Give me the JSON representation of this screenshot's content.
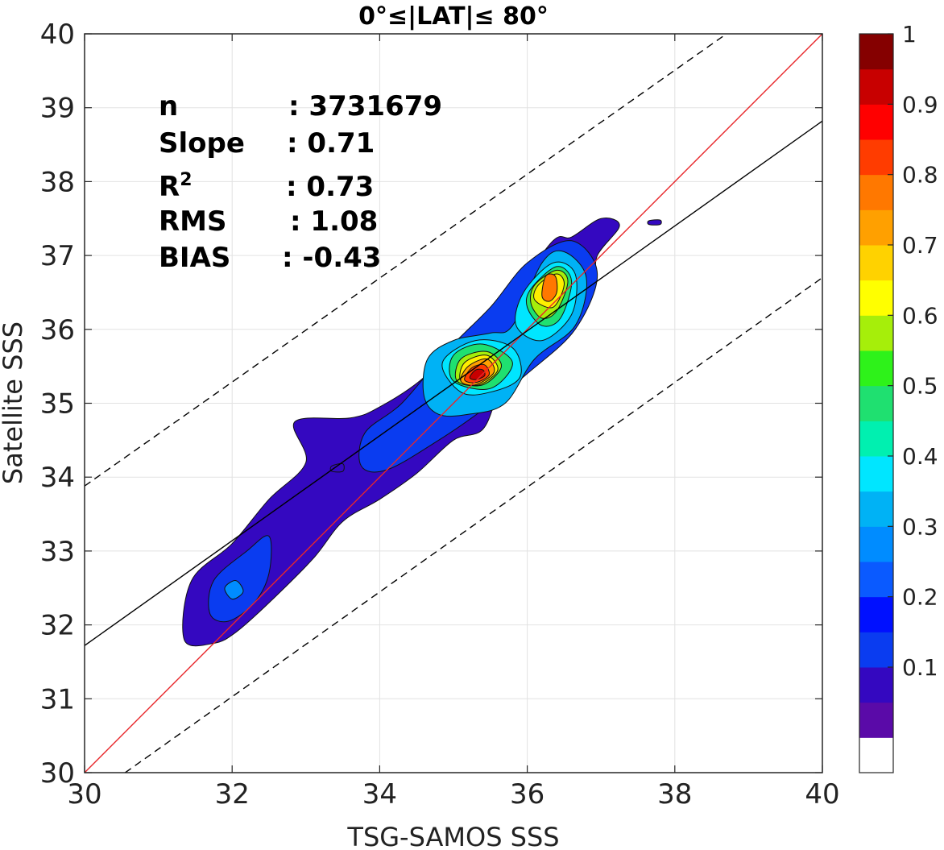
{
  "chart_data": {
    "type": "heatmap",
    "title": "0°≤|LAT|≤ 80°",
    "xlabel": "TSG-SAMOS SSS",
    "ylabel": "Satellite SSS",
    "xlim": [
      30,
      40
    ],
    "ylim": [
      30,
      40
    ],
    "x_ticks": [
      "30",
      "32",
      "34",
      "36",
      "38",
      "40"
    ],
    "y_ticks": [
      "30",
      "31",
      "32",
      "33",
      "34",
      "35",
      "36",
      "37",
      "38",
      "39",
      "40"
    ],
    "grid": true,
    "stats": [
      {
        "key": "n",
        "value": ": 3731679"
      },
      {
        "key": "Slope",
        "value": ": 0.71"
      },
      {
        "key": "R2",
        "value": ": 0.73"
      },
      {
        "key": "RMS",
        "value": ": 1.08"
      },
      {
        "key": "BIAS",
        "value": ": -0.43"
      }
    ],
    "lines": [
      {
        "name": "one-to-one",
        "color": "#e8262a",
        "style": "solid",
        "x": [
          30,
          40
        ],
        "y": [
          30,
          40
        ]
      },
      {
        "name": "regression",
        "color": "#000000",
        "style": "solid",
        "x": [
          30,
          40
        ],
        "y": [
          31.72,
          38.82
        ]
      },
      {
        "name": "upper-bound",
        "color": "#000000",
        "style": "dashed",
        "x": [
          30,
          38.7
        ],
        "y": [
          33.88,
          40
        ]
      },
      {
        "name": "lower-bound",
        "color": "#000000",
        "style": "dashed",
        "x": [
          30.55,
          40
        ],
        "y": [
          30,
          36.7
        ]
      }
    ],
    "contours": [
      {
        "level": 0.05,
        "color": "#3408c0",
        "points": [
          [
            31.35,
            31.8
          ],
          [
            31.45,
            32.6
          ],
          [
            32.0,
            33.1
          ],
          [
            32.5,
            33.7
          ],
          [
            33.0,
            34.2
          ],
          [
            32.85,
            34.75
          ],
          [
            33.6,
            34.8
          ],
          [
            34.0,
            34.95
          ],
          [
            34.6,
            35.35
          ],
          [
            35.2,
            36.0
          ],
          [
            35.8,
            36.5
          ],
          [
            36.35,
            37.2
          ],
          [
            36.6,
            37.25
          ],
          [
            37.0,
            37.5
          ],
          [
            37.25,
            37.4
          ],
          [
            36.95,
            37.0
          ],
          [
            36.9,
            36.6
          ],
          [
            36.55,
            36.0
          ],
          [
            36.1,
            35.7
          ],
          [
            35.65,
            35.2
          ],
          [
            35.4,
            34.65
          ],
          [
            35.0,
            34.5
          ],
          [
            34.5,
            34.05
          ],
          [
            34.0,
            33.7
          ],
          [
            33.5,
            33.4
          ],
          [
            33.1,
            32.9
          ],
          [
            32.5,
            32.3
          ],
          [
            32.05,
            31.9
          ],
          [
            31.75,
            31.75
          ]
        ]
      },
      {
        "level": 0.05,
        "color": "#3408c0",
        "points": [
          [
            37.65,
            37.47
          ],
          [
            37.8,
            37.48
          ],
          [
            37.8,
            37.42
          ],
          [
            37.65,
            37.42
          ]
        ]
      },
      {
        "level": 0.05,
        "color": "#3408c0",
        "points": [
          [
            33.35,
            34.15
          ],
          [
            33.5,
            34.18
          ],
          [
            33.5,
            34.08
          ],
          [
            33.35,
            34.08
          ]
        ]
      },
      {
        "level": 0.15,
        "color": "#0a3cf0",
        "points": [
          [
            31.7,
            32.15
          ],
          [
            31.75,
            32.6
          ],
          [
            32.2,
            33.0
          ],
          [
            32.5,
            33.2
          ],
          [
            32.5,
            32.7
          ],
          [
            32.3,
            32.3
          ],
          [
            31.95,
            32.05
          ]
        ]
      },
      {
        "level": 0.15,
        "color": "#0a3cf0",
        "points": [
          [
            33.75,
            34.15
          ],
          [
            33.8,
            34.6
          ],
          [
            34.3,
            35.0
          ],
          [
            34.9,
            35.7
          ],
          [
            35.5,
            36.3
          ],
          [
            36.0,
            36.9
          ],
          [
            36.6,
            37.2
          ],
          [
            36.95,
            36.75
          ],
          [
            36.65,
            36.0
          ],
          [
            36.0,
            35.4
          ],
          [
            35.45,
            34.95
          ],
          [
            34.8,
            34.5
          ],
          [
            34.1,
            34.1
          ]
        ]
      },
      {
        "level": 0.25,
        "color": "#008cff",
        "points": [
          [
            31.9,
            32.5
          ],
          [
            32.05,
            32.6
          ],
          [
            32.15,
            32.45
          ],
          [
            32.0,
            32.35
          ]
        ]
      },
      {
        "level": 0.25,
        "color": "#00b2f5",
        "points": [
          [
            34.6,
            35.1
          ],
          [
            34.65,
            35.6
          ],
          [
            35.0,
            35.85
          ],
          [
            35.5,
            35.95
          ],
          [
            35.8,
            36.05
          ],
          [
            36.2,
            36.9
          ],
          [
            36.5,
            37.05
          ],
          [
            36.8,
            36.7
          ],
          [
            36.65,
            36.05
          ],
          [
            36.1,
            35.6
          ],
          [
            35.7,
            35.0
          ],
          [
            35.2,
            34.85
          ],
          [
            34.8,
            34.85
          ]
        ]
      },
      {
        "level": 0.35,
        "color": "#00e6ff",
        "points": [
          [
            35.1,
            35.15
          ],
          [
            34.85,
            35.55
          ],
          [
            35.3,
            35.85
          ],
          [
            35.8,
            35.75
          ],
          [
            35.9,
            35.35
          ],
          [
            35.5,
            35.15
          ]
        ]
      },
      {
        "level": 0.35,
        "color": "#00e6ff",
        "points": [
          [
            35.85,
            36.05
          ],
          [
            35.95,
            36.5
          ],
          [
            36.35,
            36.9
          ],
          [
            36.65,
            36.75
          ],
          [
            36.6,
            36.2
          ],
          [
            36.2,
            35.85
          ]
        ]
      },
      {
        "level": 0.45,
        "color": "#1fe070",
        "points": [
          [
            35.0,
            35.3
          ],
          [
            35.0,
            35.65
          ],
          [
            35.4,
            35.8
          ],
          [
            35.8,
            35.55
          ],
          [
            35.5,
            35.2
          ]
        ]
      },
      {
        "level": 0.45,
        "color": "#1fe070",
        "points": [
          [
            36.0,
            36.3
          ],
          [
            36.05,
            36.55
          ],
          [
            36.4,
            36.85
          ],
          [
            36.6,
            36.65
          ],
          [
            36.45,
            36.15
          ],
          [
            36.2,
            36.05
          ]
        ]
      },
      {
        "level": 0.55,
        "color": "#a6ee0a",
        "points": [
          [
            35.05,
            35.3
          ],
          [
            35.1,
            35.6
          ],
          [
            35.45,
            35.7
          ],
          [
            35.65,
            35.5
          ],
          [
            35.4,
            35.25
          ]
        ]
      },
      {
        "level": 0.55,
        "color": "#a6ee0a",
        "points": [
          [
            36.05,
            36.35
          ],
          [
            36.1,
            36.6
          ],
          [
            36.4,
            36.8
          ],
          [
            36.55,
            36.65
          ],
          [
            36.4,
            36.25
          ],
          [
            36.2,
            36.15
          ]
        ]
      },
      {
        "level": 0.65,
        "color": "#ffee00",
        "points": [
          [
            35.1,
            35.3
          ],
          [
            35.15,
            35.55
          ],
          [
            35.45,
            35.65
          ],
          [
            35.6,
            35.45
          ],
          [
            35.35,
            35.25
          ]
        ]
      },
      {
        "level": 0.65,
        "color": "#ffee00",
        "points": [
          [
            36.1,
            36.4
          ],
          [
            36.15,
            36.6
          ],
          [
            36.4,
            36.75
          ],
          [
            36.5,
            36.6
          ],
          [
            36.35,
            36.3
          ]
        ]
      },
      {
        "level": 0.75,
        "color": "#ffa000",
        "points": [
          [
            35.1,
            35.3
          ],
          [
            35.2,
            35.5
          ],
          [
            35.45,
            35.6
          ],
          [
            35.55,
            35.42
          ],
          [
            35.3,
            35.25
          ]
        ]
      },
      {
        "level": 0.75,
        "color": "#ff7800",
        "points": [
          [
            36.2,
            36.45
          ],
          [
            36.25,
            36.72
          ],
          [
            36.38,
            36.72
          ],
          [
            36.4,
            36.5
          ],
          [
            36.3,
            36.38
          ]
        ]
      },
      {
        "level": 0.85,
        "color": "#ff3c00",
        "points": [
          [
            35.15,
            35.32
          ],
          [
            35.25,
            35.48
          ],
          [
            35.42,
            35.52
          ],
          [
            35.48,
            35.38
          ],
          [
            35.3,
            35.28
          ]
        ]
      },
      {
        "level": 0.95,
        "color": "#c80000",
        "points": [
          [
            35.22,
            35.35
          ],
          [
            35.3,
            35.45
          ],
          [
            35.4,
            35.45
          ],
          [
            35.42,
            35.37
          ],
          [
            35.3,
            35.32
          ]
        ]
      }
    ],
    "colorbar": {
      "ticks": [
        "0.1",
        "0.2",
        "0.3",
        "0.4",
        "0.5",
        "0.6",
        "0.7",
        "0.8",
        "0.9",
        "1"
      ],
      "tick_values": [
        0.1,
        0.2,
        0.3,
        0.4,
        0.5,
        0.6,
        0.7,
        0.8,
        0.9,
        1.0
      ],
      "colors": [
        "#ffffff",
        "#5a0aa8",
        "#3408c0",
        "#0a3cf0",
        "#0010ff",
        "#0a5aff",
        "#008cff",
        "#00b2f5",
        "#00e6ff",
        "#00f0b0",
        "#1fe070",
        "#2ef21a",
        "#a6ee0a",
        "#ffff00",
        "#ffd200",
        "#ffa000",
        "#ff7800",
        "#ff3c00",
        "#ff0000",
        "#c80000",
        "#850000"
      ]
    }
  }
}
